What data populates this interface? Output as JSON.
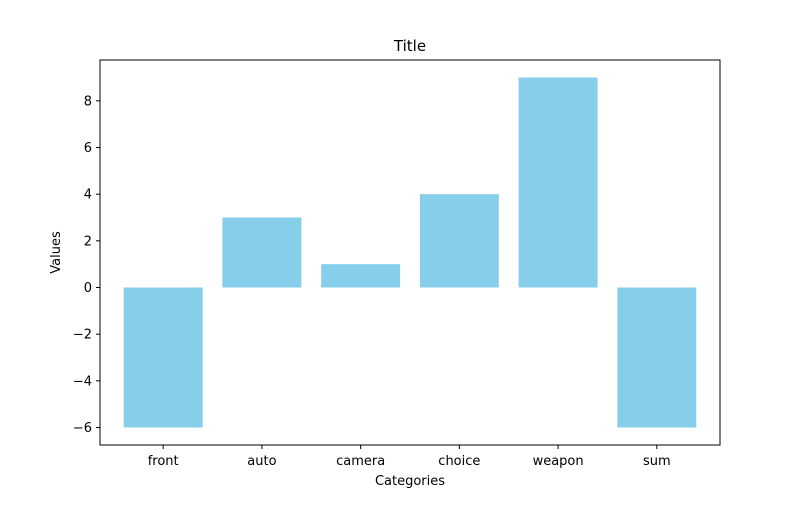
{
  "chart_data": {
    "type": "bar",
    "title": "Title",
    "xlabel": "Categories",
    "ylabel": "Values",
    "categories": [
      "front",
      "auto",
      "camera",
      "choice",
      "weapon",
      "sum"
    ],
    "values": [
      -6,
      3,
      1,
      4,
      9,
      -6
    ],
    "ylim": [
      -6.75,
      9.75
    ],
    "yticks": [
      -6,
      -4,
      -2,
      0,
      2,
      4,
      6,
      8
    ],
    "ytick_labels": [
      "−6",
      "−4",
      "−2",
      "0",
      "2",
      "4",
      "6",
      "8"
    ],
    "bar_color": "#87ceeb",
    "grid": false,
    "legend": "none"
  }
}
